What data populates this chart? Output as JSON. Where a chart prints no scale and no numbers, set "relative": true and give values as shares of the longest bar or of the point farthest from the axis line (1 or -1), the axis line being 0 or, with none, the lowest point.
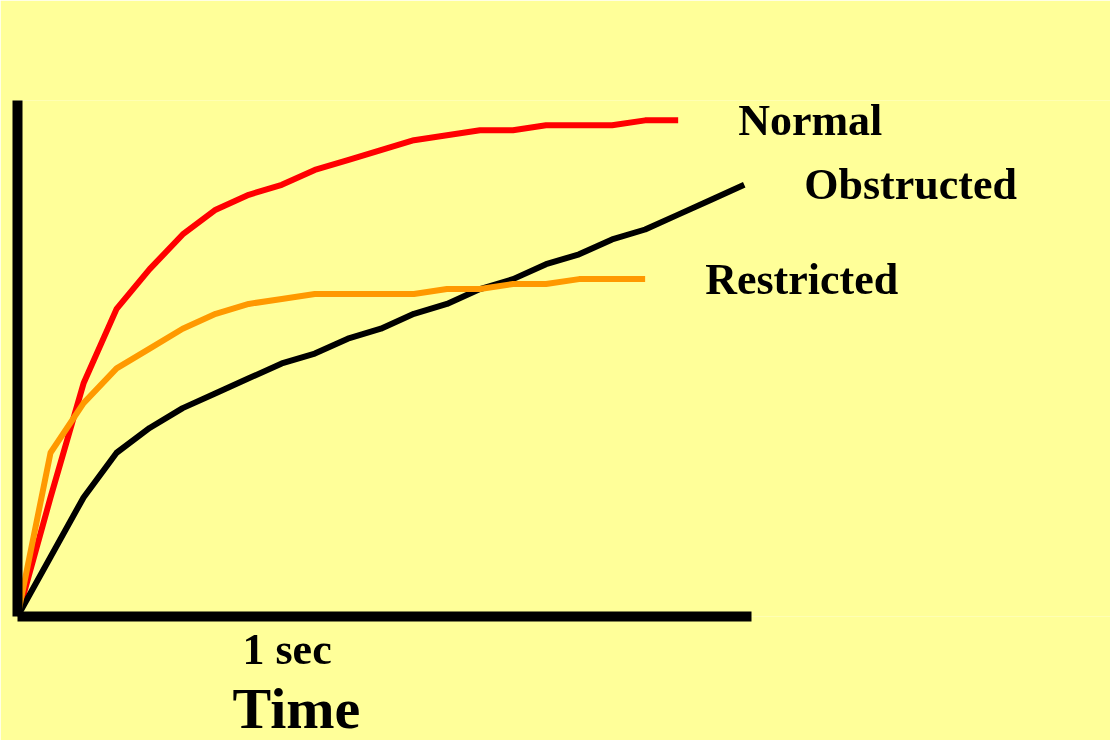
{
  "chart_data": {
    "type": "line",
    "relative": true,
    "xlabel": "Time",
    "legend": false,
    "grid": false,
    "marker": "none",
    "line_style": "solid",
    "annotations": [
      "1 sec"
    ],
    "categories": [
      null,
      null,
      null,
      null,
      null,
      null,
      null,
      null,
      null,
      null,
      null,
      null,
      null,
      null,
      null,
      null,
      null,
      null,
      null,
      null,
      null,
      null,
      null
    ],
    "series": [
      {
        "name": "Normal",
        "color": "#ff0000",
        "values": [
          0,
          0.24,
          0.47,
          0.62,
          0.7,
          0.77,
          0.82,
          0.85,
          0.87,
          0.9,
          0.92,
          0.94,
          0.96,
          0.97,
          0.98,
          0.98,
          0.99,
          0.99,
          0.99,
          1.0,
          1.0,
          null,
          null
        ]
      },
      {
        "name": "Obstructed",
        "color": "#000000",
        "values": [
          0,
          0.12,
          0.24,
          0.33,
          0.38,
          0.42,
          0.45,
          0.48,
          0.51,
          0.53,
          0.56,
          0.58,
          0.61,
          0.63,
          0.66,
          0.68,
          0.71,
          0.73,
          0.76,
          0.78,
          0.81,
          0.84,
          0.87
        ]
      },
      {
        "name": "Restricted",
        "color": "#ff9900",
        "values": [
          0,
          0.33,
          0.43,
          0.5,
          0.54,
          0.58,
          0.61,
          0.63,
          0.64,
          0.65,
          0.65,
          0.65,
          0.65,
          0.66,
          0.66,
          0.67,
          0.67,
          0.68,
          0.68,
          0.68,
          null,
          null,
          null
        ]
      }
    ]
  }
}
